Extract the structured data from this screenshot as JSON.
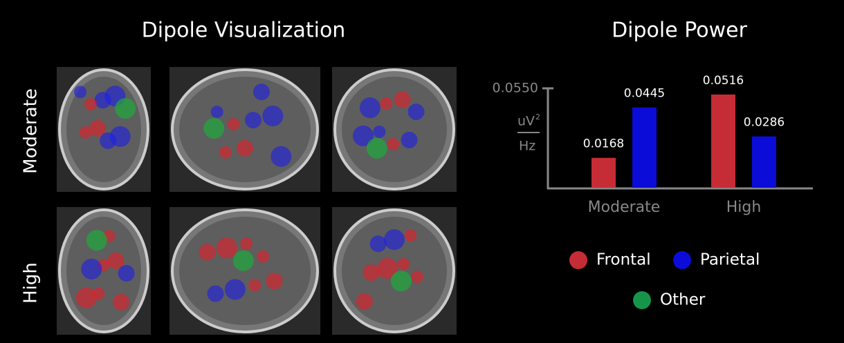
{
  "figure": {
    "title": "Dipole Visualization",
    "rows": [
      "Moderate",
      "High"
    ]
  },
  "chart_data": {
    "type": "bar",
    "title": "Dipole Power",
    "ylabel": {
      "unit": "uV",
      "power": "2",
      "per": "Hz"
    },
    "categories": [
      "Moderate",
      "High"
    ],
    "series": [
      {
        "name": "Frontal",
        "color": "#c62c35",
        "values": [
          0.0168,
          0.0516
        ]
      },
      {
        "name": "Parietal",
        "color": "#0c0cd8",
        "values": [
          0.0445,
          0.0286
        ]
      },
      {
        "name": "Other",
        "color": "#16954a",
        "values": [
          null,
          null
        ]
      }
    ],
    "ylim": [
      0,
      0.055
    ],
    "yticks": [
      {
        "value": 0.055,
        "label": "0.0550"
      }
    ],
    "grid": false
  }
}
